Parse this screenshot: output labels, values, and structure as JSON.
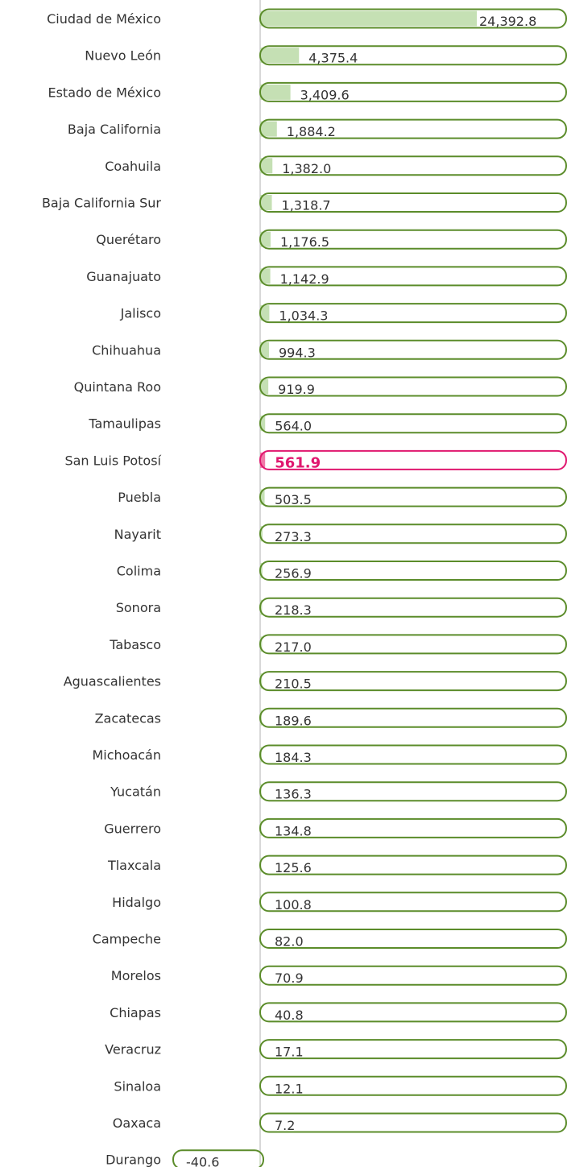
{
  "chart_data": {
    "type": "hbar",
    "categories": [
      "Ciudad de México",
      "Nuevo León",
      "Estado de México",
      "Baja California",
      "Coahuila",
      "Baja California Sur",
      "Querétaro",
      "Guanajuato",
      "Jalisco",
      "Chihuahua",
      "Quintana Roo",
      "Tamaulipas",
      "San Luis Potosí",
      "Puebla",
      "Nayarit",
      "Colima",
      "Sonora",
      "Tabasco",
      "Aguascalientes",
      "Zacatecas",
      "Michoacán",
      "Yucatán",
      "Guerrero",
      "Tlaxcala",
      "Hidalgo",
      "Campeche",
      "Morelos",
      "Chiapas",
      "Veracruz",
      "Sinaloa",
      "Oaxaca",
      "Durango"
    ],
    "values": [
      24392.8,
      4375.4,
      3409.6,
      1884.2,
      1382.0,
      1318.7,
      1176.5,
      1142.9,
      1034.3,
      994.3,
      919.9,
      564.0,
      561.9,
      503.5,
      273.3,
      256.9,
      218.3,
      217.0,
      210.5,
      189.6,
      184.3,
      136.3,
      134.8,
      125.6,
      100.8,
      82.0,
      70.9,
      40.8,
      17.1,
      12.1,
      7.2,
      -40.6
    ],
    "value_labels": [
      "24,392.8",
      "4,375.4",
      "3,409.6",
      "1,884.2",
      "1,382.0",
      "1,318.7",
      "1,176.5",
      "1,142.9",
      "1,034.3",
      "994.3",
      "919.9",
      "564.0",
      "561.9",
      "503.5",
      "273.3",
      "256.9",
      "218.3",
      "217.0",
      "210.5",
      "189.6",
      "184.3",
      "136.3",
      "134.8",
      "125.6",
      "100.8",
      "82.0",
      "70.9",
      "40.8",
      "17.1",
      "12.1",
      "7.2",
      "-40.6"
    ],
    "color": "#c5e0b4",
    "outline_color": "#5b8c2a",
    "highlight_index": 12,
    "highlight_color": "#e0176f",
    "highlight_fill": "#f07aa8",
    "xlim": [
      0,
      34450
    ]
  }
}
